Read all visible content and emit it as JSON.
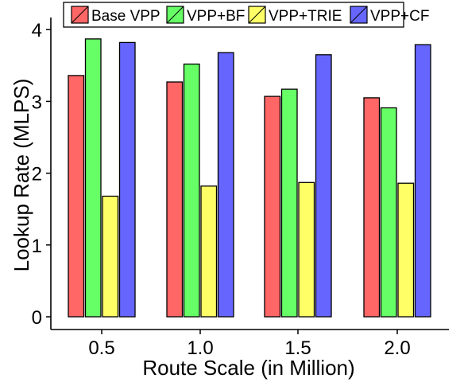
{
  "chart_data": {
    "type": "bar",
    "categories": [
      "0.5",
      "1.0",
      "1.5",
      "2.0"
    ],
    "series": [
      {
        "name": "Base VPP",
        "color": "#FF6666",
        "values": [
          3.36,
          3.27,
          3.07,
          3.05
        ]
      },
      {
        "name": "VPP+BF",
        "color": "#66FF66",
        "values": [
          3.87,
          3.52,
          3.17,
          2.91
        ]
      },
      {
        "name": "VPP+TRIE",
        "color": "#FFFF66",
        "values": [
          1.68,
          1.82,
          1.87,
          1.86
        ]
      },
      {
        "name": "VPP+CF",
        "color": "#6666FF",
        "values": [
          3.82,
          3.68,
          3.65,
          3.79
        ]
      }
    ],
    "xlabel": "Route Scale (in Million)",
    "ylabel": "Lookup Rate (MLPS)",
    "yticks": [
      "0",
      "1",
      "2",
      "3",
      "4"
    ],
    "ylim": [
      0,
      4.2
    ],
    "legend_position": "top",
    "grid": false
  }
}
